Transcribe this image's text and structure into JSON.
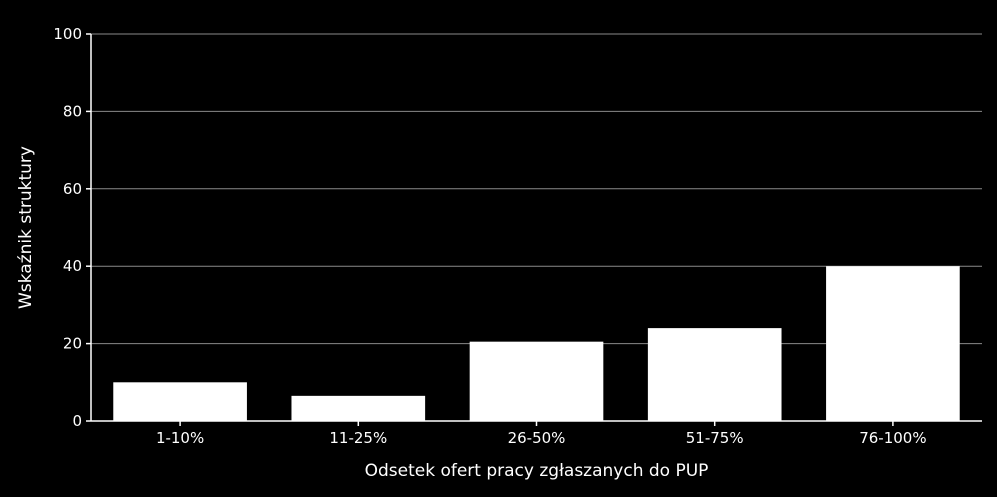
{
  "chart_data": {
    "type": "bar",
    "categories": [
      "1-10%",
      "11-25%",
      "26-50%",
      "51-75%",
      "76-100%"
    ],
    "values": [
      10,
      6.5,
      20.5,
      24,
      40
    ],
    "xlabel": "Odsetek ofert pracy zgłaszanych do PUP",
    "ylabel": "Wskaźnik struktury",
    "ylim": [
      0,
      100
    ],
    "yticks": [
      0,
      20,
      40,
      60,
      80,
      100
    ],
    "grid": true,
    "colors": {
      "background": "#000000",
      "bar": "#ffffff",
      "grid": "#8a8a8a",
      "text": "#ffffff"
    }
  }
}
